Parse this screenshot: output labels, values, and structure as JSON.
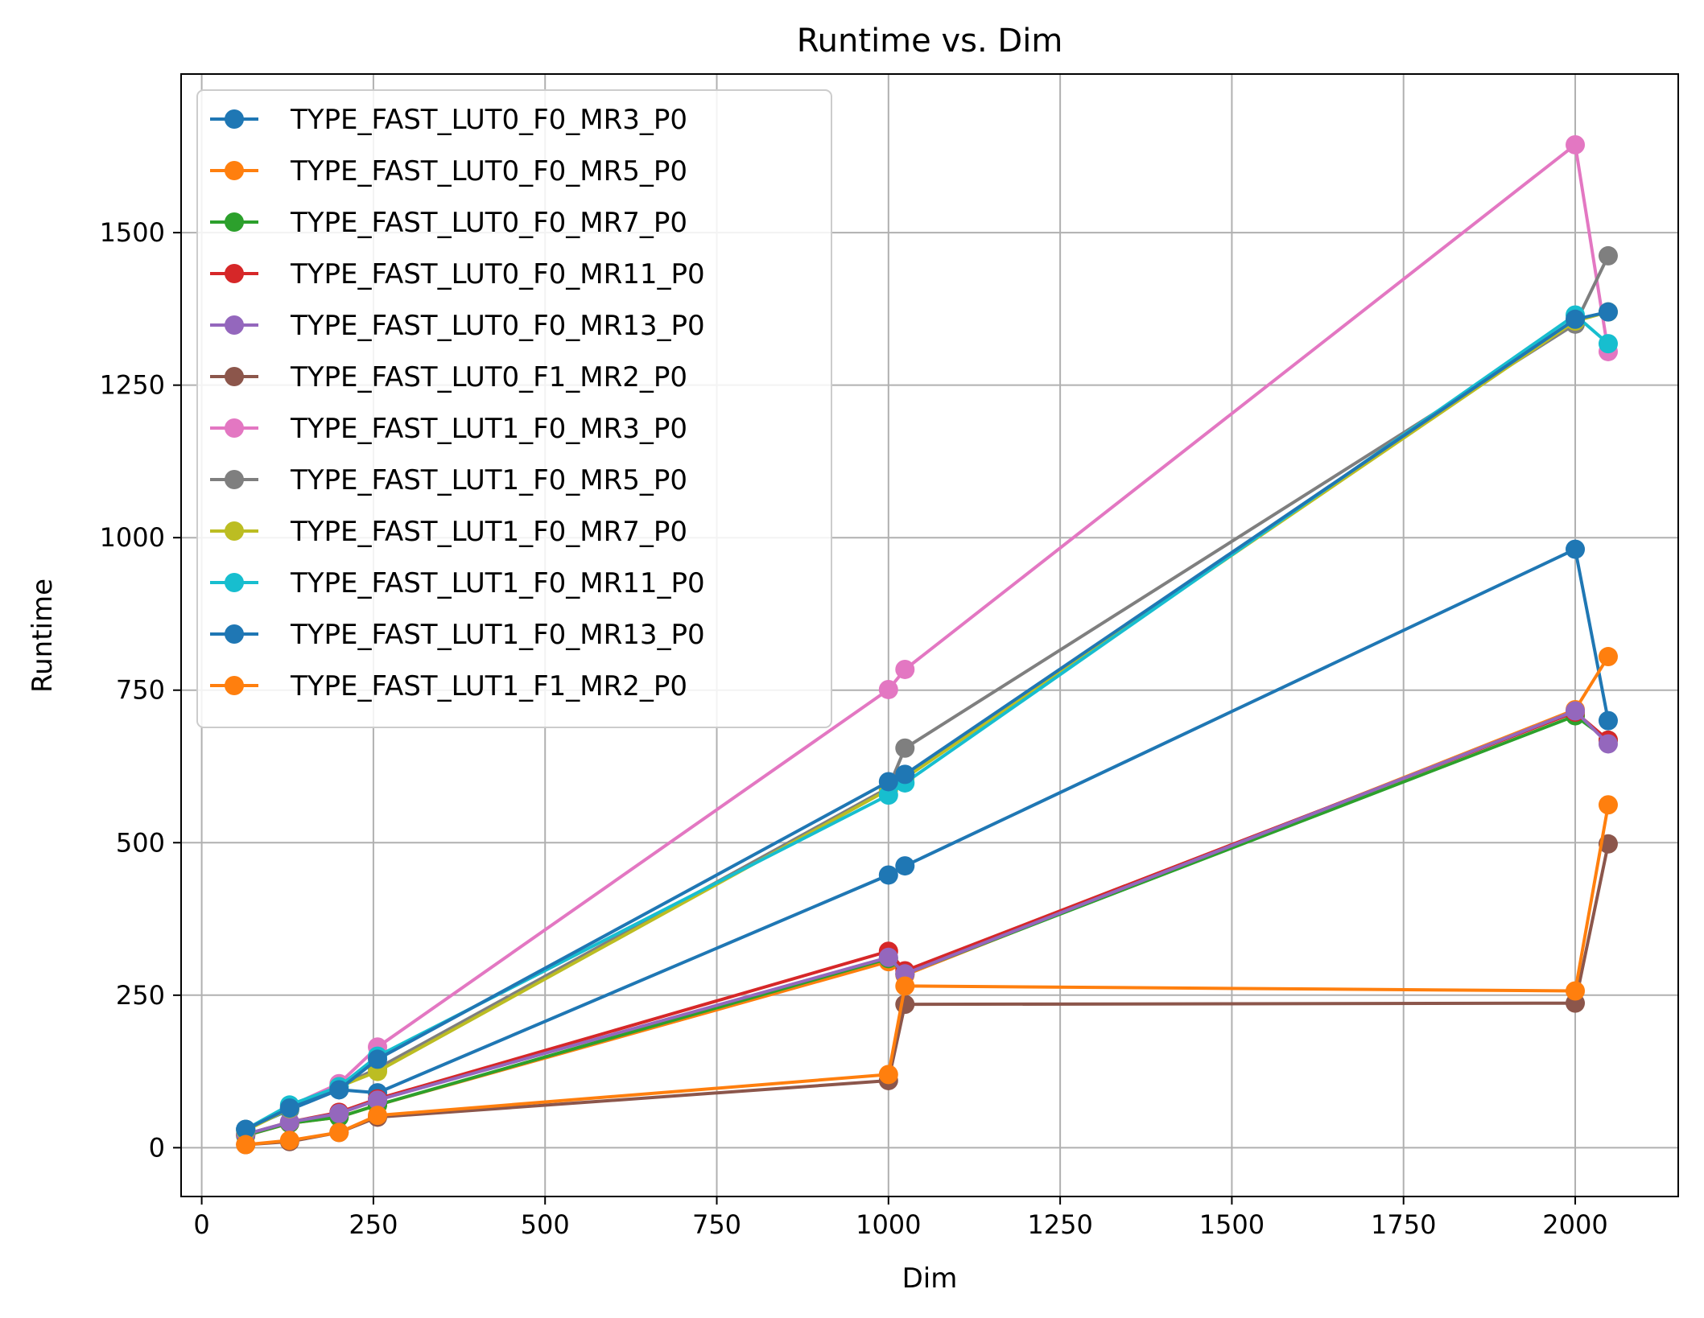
{
  "chart_data": {
    "type": "line",
    "title": "Runtime vs. Dim",
    "xlabel": "Dim",
    "ylabel": "Runtime",
    "xlim": [
      -30,
      2150
    ],
    "ylim": [
      -80,
      1760
    ],
    "xticks": [
      0,
      250,
      500,
      750,
      1000,
      1250,
      1500,
      1750,
      2000
    ],
    "yticks": [
      0,
      250,
      500,
      750,
      1000,
      1250,
      1500
    ],
    "grid": true,
    "legend_position": "upper-left",
    "series": [
      {
        "name": "TYPE_FAST_LUT0_F0_MR3_P0",
        "color": "#1f77b4",
        "x": [
          64,
          128,
          200,
          256,
          1000,
          1024,
          2000,
          2048
        ],
        "y": [
          30,
          62,
          95,
          90,
          447,
          462,
          981,
          700
        ]
      },
      {
        "name": "TYPE_FAST_LUT0_F0_MR5_P0",
        "color": "#ff7f0e",
        "x": [
          64,
          128,
          200,
          256,
          1000,
          1024,
          2000,
          2048
        ],
        "y": [
          20,
          40,
          50,
          70,
          305,
          283,
          718,
          805
        ]
      },
      {
        "name": "TYPE_FAST_LUT0_F0_MR7_P0",
        "color": "#2ca02c",
        "x": [
          64,
          128,
          200,
          256,
          1000,
          1024,
          2000,
          2048
        ],
        "y": [
          20,
          40,
          50,
          70,
          310,
          285,
          708,
          668
        ]
      },
      {
        "name": "TYPE_FAST_LUT0_F0_MR11_P0",
        "color": "#d62728",
        "x": [
          64,
          128,
          200,
          256,
          1000,
          1024,
          2000,
          2048
        ],
        "y": [
          22,
          42,
          58,
          80,
          322,
          290,
          714,
          668
        ]
      },
      {
        "name": "TYPE_FAST_LUT0_F0_MR13_P0",
        "color": "#9467bd",
        "x": [
          64,
          128,
          200,
          256,
          1000,
          1024,
          2000,
          2048
        ],
        "y": [
          22,
          42,
          56,
          78,
          312,
          285,
          716,
          662
        ]
      },
      {
        "name": "TYPE_FAST_LUT0_F1_MR2_P0",
        "color": "#8c564b",
        "x": [
          64,
          128,
          200,
          256,
          1000,
          1024,
          2000,
          2048
        ],
        "y": [
          5,
          10,
          25,
          50,
          110,
          235,
          237,
          498
        ]
      },
      {
        "name": "TYPE_FAST_LUT1_F0_MR3_P0",
        "color": "#e377c2",
        "x": [
          64,
          128,
          200,
          256,
          1000,
          1024,
          2000,
          2048
        ],
        "y": [
          30,
          68,
          105,
          165,
          751,
          784,
          1644,
          1305
        ]
      },
      {
        "name": "TYPE_FAST_LUT1_F0_MR5_P0",
        "color": "#7f7f7f",
        "x": [
          64,
          128,
          200,
          256,
          1000,
          1024,
          2000,
          2048
        ],
        "y": [
          30,
          65,
          100,
          130,
          590,
          655,
          1350,
          1462
        ]
      },
      {
        "name": "TYPE_FAST_LUT1_F0_MR7_P0",
        "color": "#bcbd22",
        "x": [
          64,
          128,
          200,
          256,
          1000,
          1024,
          2000,
          2048
        ],
        "y": [
          28,
          64,
          100,
          125,
          587,
          606,
          1355,
          1370
        ]
      },
      {
        "name": "TYPE_FAST_LUT1_F0_MR11_P0",
        "color": "#17becf",
        "x": [
          64,
          128,
          200,
          256,
          1000,
          1024,
          2000,
          2048
        ],
        "y": [
          30,
          70,
          100,
          150,
          578,
          598,
          1365,
          1318
        ]
      },
      {
        "name": "TYPE_FAST_LUT1_F0_MR13_P0",
        "color": "#1f77b4",
        "x": [
          64,
          128,
          200,
          256,
          1000,
          1024,
          2000,
          2048
        ],
        "y": [
          30,
          65,
          95,
          145,
          600,
          612,
          1358,
          1370
        ]
      },
      {
        "name": "TYPE_FAST_LUT1_F1_MR2_P0",
        "color": "#ff7f0e",
        "x": [
          64,
          128,
          200,
          256,
          1000,
          1024,
          2000,
          2048
        ],
        "y": [
          5,
          12,
          25,
          53,
          120,
          265,
          257,
          562
        ]
      }
    ]
  }
}
